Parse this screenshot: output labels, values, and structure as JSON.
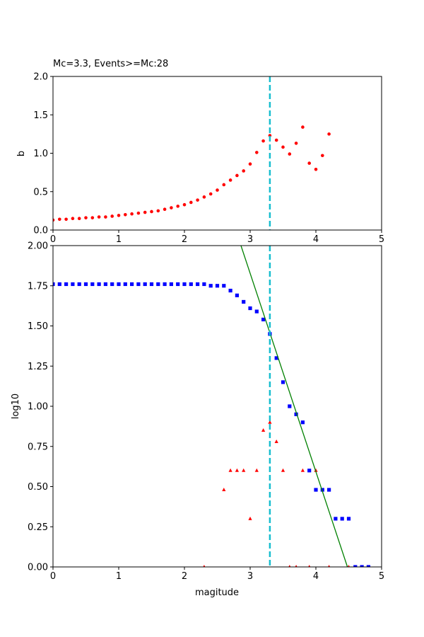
{
  "chart_data": [
    {
      "type": "scatter",
      "title": "Mc=3.3, Events>=Mc:28",
      "xlabel": "",
      "ylabel": "b",
      "xlim": [
        0,
        5
      ],
      "ylim": [
        0,
        2.0
      ],
      "xticks": [
        "0",
        "1",
        "2",
        "3",
        "4",
        "5"
      ],
      "yticks": [
        "0.0",
        "0.5",
        "1.0",
        "1.5",
        "2.0"
      ],
      "grid": false,
      "colors": {
        "points": "#ff0000",
        "mc_line": "#17becf"
      },
      "mc_line_x": 3.3,
      "series": [
        {
          "marker": "dot",
          "x": [
            0.0,
            0.1,
            0.2,
            0.3,
            0.4,
            0.5,
            0.6,
            0.7,
            0.8,
            0.9,
            1.0,
            1.1,
            1.2,
            1.3,
            1.4,
            1.5,
            1.6,
            1.7,
            1.8,
            1.9,
            2.0,
            2.1,
            2.2,
            2.3,
            2.4,
            2.5,
            2.6,
            2.7,
            2.8,
            2.9,
            3.0,
            3.1,
            3.2,
            3.3,
            3.4,
            3.5,
            3.6,
            3.7,
            3.8,
            3.9,
            4.0,
            4.1,
            4.2
          ],
          "y": [
            0.13,
            0.14,
            0.14,
            0.15,
            0.15,
            0.16,
            0.16,
            0.17,
            0.17,
            0.18,
            0.19,
            0.2,
            0.21,
            0.22,
            0.23,
            0.24,
            0.25,
            0.27,
            0.29,
            0.31,
            0.33,
            0.36,
            0.39,
            0.43,
            0.47,
            0.52,
            0.59,
            0.65,
            0.71,
            0.77,
            0.86,
            1.01,
            1.16,
            1.23,
            1.17,
            1.08,
            0.99,
            1.13,
            1.34,
            0.87,
            0.79,
            0.97,
            1.25
          ]
        }
      ]
    },
    {
      "type": "scatter",
      "title": "",
      "xlabel": "magitude",
      "ylabel": "log10",
      "xlim": [
        0,
        5
      ],
      "ylim": [
        0,
        2.0
      ],
      "xticks": [
        "0",
        "1",
        "2",
        "3",
        "4",
        "5"
      ],
      "yticks": [
        "0.00",
        "0.25",
        "0.50",
        "0.75",
        "1.00",
        "1.25",
        "1.50",
        "1.75",
        "2.00"
      ],
      "grid": false,
      "colors": {
        "cumulative": "#0000ff",
        "noncumulative": "#ff0000",
        "fit": "#008000",
        "mc_line": "#17becf"
      },
      "mc_line_x": 3.3,
      "fit_line": {
        "x": [
          2.86,
          4.48
        ],
        "y": [
          2.0,
          0.0
        ]
      },
      "series": [
        {
          "marker": "square",
          "x": [
            0.0,
            0.1,
            0.2,
            0.3,
            0.4,
            0.5,
            0.6,
            0.7,
            0.8,
            0.9,
            1.0,
            1.1,
            1.2,
            1.3,
            1.4,
            1.5,
            1.6,
            1.7,
            1.8,
            1.9,
            2.0,
            2.1,
            2.2,
            2.3,
            2.4,
            2.5,
            2.6,
            2.7,
            2.8,
            2.9,
            3.0,
            3.1,
            3.2,
            3.3,
            3.4,
            3.5,
            3.6,
            3.7,
            3.8,
            3.9,
            4.0,
            4.1,
            4.2,
            4.3,
            4.4,
            4.5,
            4.6,
            4.7,
            4.8
          ],
          "y": [
            1.76,
            1.76,
            1.76,
            1.76,
            1.76,
            1.76,
            1.76,
            1.76,
            1.76,
            1.76,
            1.76,
            1.76,
            1.76,
            1.76,
            1.76,
            1.76,
            1.76,
            1.76,
            1.76,
            1.76,
            1.76,
            1.76,
            1.76,
            1.76,
            1.75,
            1.75,
            1.75,
            1.72,
            1.69,
            1.65,
            1.61,
            1.59,
            1.54,
            1.45,
            1.3,
            1.15,
            1.0,
            0.95,
            0.9,
            0.6,
            0.48,
            0.48,
            0.48,
            0.3,
            0.3,
            0.3,
            0.0,
            0.0,
            0.0
          ]
        },
        {
          "marker": "triangle",
          "x": [
            2.3,
            2.6,
            2.7,
            2.8,
            2.9,
            3.0,
            3.1,
            3.2,
            3.3,
            3.4,
            3.5,
            3.6,
            3.7,
            3.8,
            3.9,
            4.0,
            4.2,
            4.5
          ],
          "y": [
            0.0,
            0.48,
            0.6,
            0.6,
            0.6,
            0.3,
            0.6,
            0.85,
            0.9,
            0.78,
            0.6,
            0.0,
            0.0,
            0.6,
            0.0,
            0.6,
            0.0,
            0.0
          ]
        }
      ]
    }
  ]
}
